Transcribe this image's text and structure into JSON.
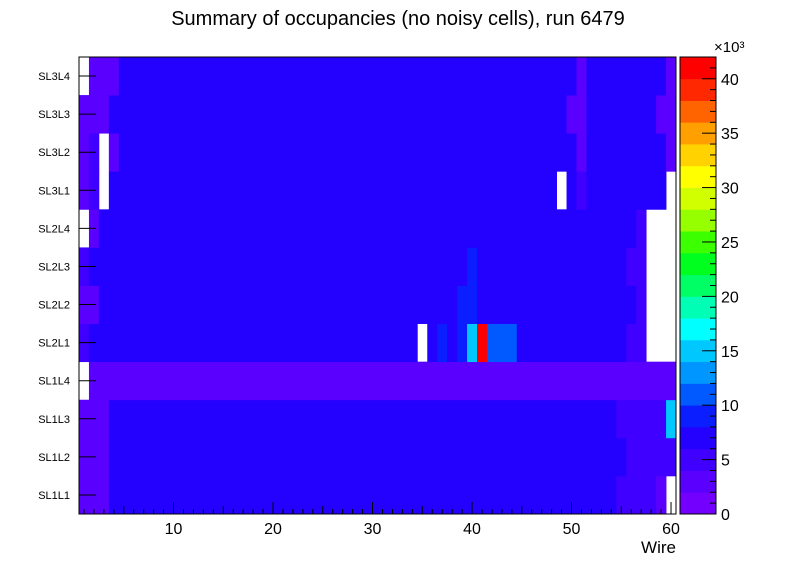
{
  "chart_data": {
    "type": "heatmap",
    "title": "Summary of occupancies (no noisy cells), run 6479",
    "xlabel": "Wire",
    "ylabel": "",
    "xlim": [
      0.5,
      60.5
    ],
    "x_ticks": [
      "10",
      "20",
      "30",
      "40",
      "50",
      "60"
    ],
    "y_categories": [
      "SL1L1",
      "SL1L2",
      "SL1L3",
      "SL1L4",
      "SL2L1",
      "SL2L2",
      "SL2L3",
      "SL2L4",
      "SL3L1",
      "SL3L2",
      "SL3L3",
      "SL3L4"
    ],
    "zlim": [
      0,
      42000
    ],
    "z_exponent_label": "×10³",
    "z_ticks": [
      "0",
      "5",
      "10",
      "15",
      "20",
      "25",
      "30",
      "35",
      "40"
    ],
    "palette": [
      "#7300ff",
      "#5a00ff",
      "#3f00ff",
      "#2400ff",
      "#0a1eff",
      "#005aff",
      "#0096ff",
      "#00c8ff",
      "#00ffff",
      "#00ffb4",
      "#00ff64",
      "#00ff1e",
      "#3cff00",
      "#96ff00",
      "#d2ff00",
      "#ffff00",
      "#ffd200",
      "#ffa000",
      "#ff6400",
      "#ff2800",
      "#ff0000"
    ],
    "rows": [
      {
        "layer": "SL1L1",
        "runs": [
          [
            1,
            3,
            1
          ],
          [
            4,
            54,
            3
          ],
          [
            55,
            58,
            2
          ],
          [
            59,
            59,
            1
          ],
          [
            60,
            60,
            null
          ]
        ]
      },
      {
        "layer": "SL1L2",
        "runs": [
          [
            1,
            3,
            1
          ],
          [
            4,
            55,
            3
          ],
          [
            56,
            60,
            2
          ]
        ]
      },
      {
        "layer": "SL1L3",
        "runs": [
          [
            1,
            3,
            1
          ],
          [
            4,
            54,
            3
          ],
          [
            55,
            59,
            2
          ],
          [
            60,
            60,
            7
          ]
        ]
      },
      {
        "layer": "SL1L4",
        "runs": [
          [
            1,
            1,
            null
          ],
          [
            2,
            60,
            1
          ]
        ]
      },
      {
        "layer": "SL2L1",
        "runs": [
          [
            1,
            1,
            2
          ],
          [
            2,
            34,
            3
          ],
          [
            35,
            35,
            null
          ],
          [
            36,
            36,
            3
          ],
          [
            37,
            37,
            4
          ],
          [
            38,
            38,
            3
          ],
          [
            39,
            39,
            4
          ],
          [
            40,
            40,
            7
          ],
          [
            41,
            41,
            20
          ],
          [
            42,
            44,
            5
          ],
          [
            45,
            55,
            3
          ],
          [
            56,
            57,
            2
          ],
          [
            58,
            60,
            null
          ]
        ]
      },
      {
        "layer": "SL2L2",
        "runs": [
          [
            1,
            2,
            1
          ],
          [
            3,
            38,
            3
          ],
          [
            39,
            40,
            4
          ],
          [
            41,
            56,
            3
          ],
          [
            57,
            57,
            2
          ],
          [
            58,
            60,
            null
          ]
        ]
      },
      {
        "layer": "SL2L3",
        "runs": [
          [
            1,
            1,
            2
          ],
          [
            2,
            39,
            3
          ],
          [
            40,
            40,
            4
          ],
          [
            41,
            55,
            3
          ],
          [
            56,
            57,
            2
          ],
          [
            58,
            60,
            null
          ]
        ]
      },
      {
        "layer": "SL2L4",
        "runs": [
          [
            1,
            1,
            null
          ],
          [
            2,
            2,
            1
          ],
          [
            3,
            56,
            3
          ],
          [
            57,
            57,
            2
          ],
          [
            58,
            60,
            null
          ]
        ]
      },
      {
        "layer": "SL3L1",
        "runs": [
          [
            1,
            1,
            1
          ],
          [
            2,
            2,
            2
          ],
          [
            3,
            3,
            null
          ],
          [
            4,
            48,
            3
          ],
          [
            49,
            49,
            null
          ],
          [
            50,
            50,
            3
          ],
          [
            51,
            51,
            2
          ],
          [
            52,
            59,
            3
          ],
          [
            60,
            60,
            null
          ]
        ]
      },
      {
        "layer": "SL3L2",
        "runs": [
          [
            1,
            1,
            1
          ],
          [
            2,
            2,
            2
          ],
          [
            3,
            3,
            null
          ],
          [
            4,
            4,
            1
          ],
          [
            5,
            50,
            3
          ],
          [
            51,
            51,
            1
          ],
          [
            52,
            59,
            3
          ],
          [
            60,
            60,
            1
          ]
        ]
      },
      {
        "layer": "SL3L3",
        "runs": [
          [
            1,
            3,
            1
          ],
          [
            4,
            49,
            3
          ],
          [
            50,
            51,
            1
          ],
          [
            52,
            58,
            3
          ],
          [
            59,
            60,
            1
          ]
        ]
      },
      {
        "layer": "SL3L4",
        "runs": [
          [
            1,
            1,
            null
          ],
          [
            2,
            4,
            1
          ],
          [
            5,
            50,
            3
          ],
          [
            51,
            51,
            1
          ],
          [
            52,
            59,
            3
          ],
          [
            60,
            60,
            1
          ]
        ]
      }
    ]
  }
}
